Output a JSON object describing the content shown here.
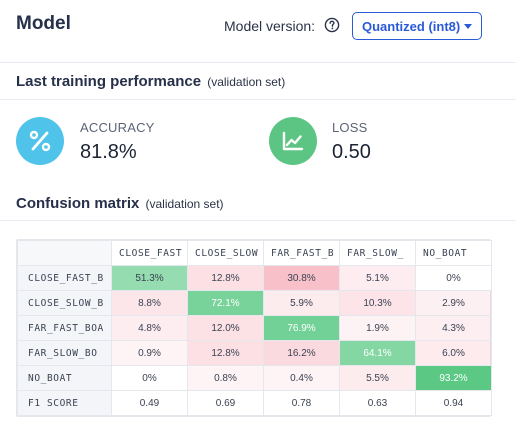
{
  "header": {
    "title": "Model",
    "version_label": "Model version:",
    "help_icon": "question-circle-icon",
    "version_selected": "Quantized (int8)"
  },
  "performance": {
    "title": "Last training performance",
    "subtitle": "(validation set)",
    "accuracy": {
      "label": "ACCURACY",
      "value": "81.8%",
      "icon": "percent-icon",
      "color": "#4fc3ea"
    },
    "loss": {
      "label": "LOSS",
      "value": "0.50",
      "icon": "line-chart-icon",
      "color": "#5cc583"
    }
  },
  "confusion": {
    "title": "Confusion matrix",
    "subtitle": "(validation set)",
    "columns": [
      "CLOSE_FAST",
      "CLOSE_SLOW",
      "FAR_FAST_B",
      "FAR_SLOW_",
      "NO_BOAT"
    ],
    "rows": [
      {
        "label": "CLOSE_FAST_B",
        "values": [
          "51.3%",
          "12.8%",
          "30.8%",
          "5.1%",
          "0%"
        ]
      },
      {
        "label": "CLOSE_SLOW_B",
        "values": [
          "8.8%",
          "72.1%",
          "5.9%",
          "10.3%",
          "2.9%"
        ]
      },
      {
        "label": "FAR_FAST_BOA",
        "values": [
          "4.8%",
          "12.0%",
          "76.9%",
          "1.9%",
          "4.3%"
        ]
      },
      {
        "label": "FAR_SLOW_BO",
        "values": [
          "0.9%",
          "12.8%",
          "16.2%",
          "64.1%",
          "6.0%"
        ]
      },
      {
        "label": "NO_BOAT",
        "values": [
          "0%",
          "0.8%",
          "0.4%",
          "5.5%",
          "93.2%"
        ]
      }
    ],
    "f1": {
      "label": "F1 SCORE",
      "values": [
        "0.49",
        "0.69",
        "0.78",
        "0.63",
        "0.94"
      ]
    },
    "colors": {
      "correct": "#3ec06f",
      "error": "#f0778a"
    }
  }
}
